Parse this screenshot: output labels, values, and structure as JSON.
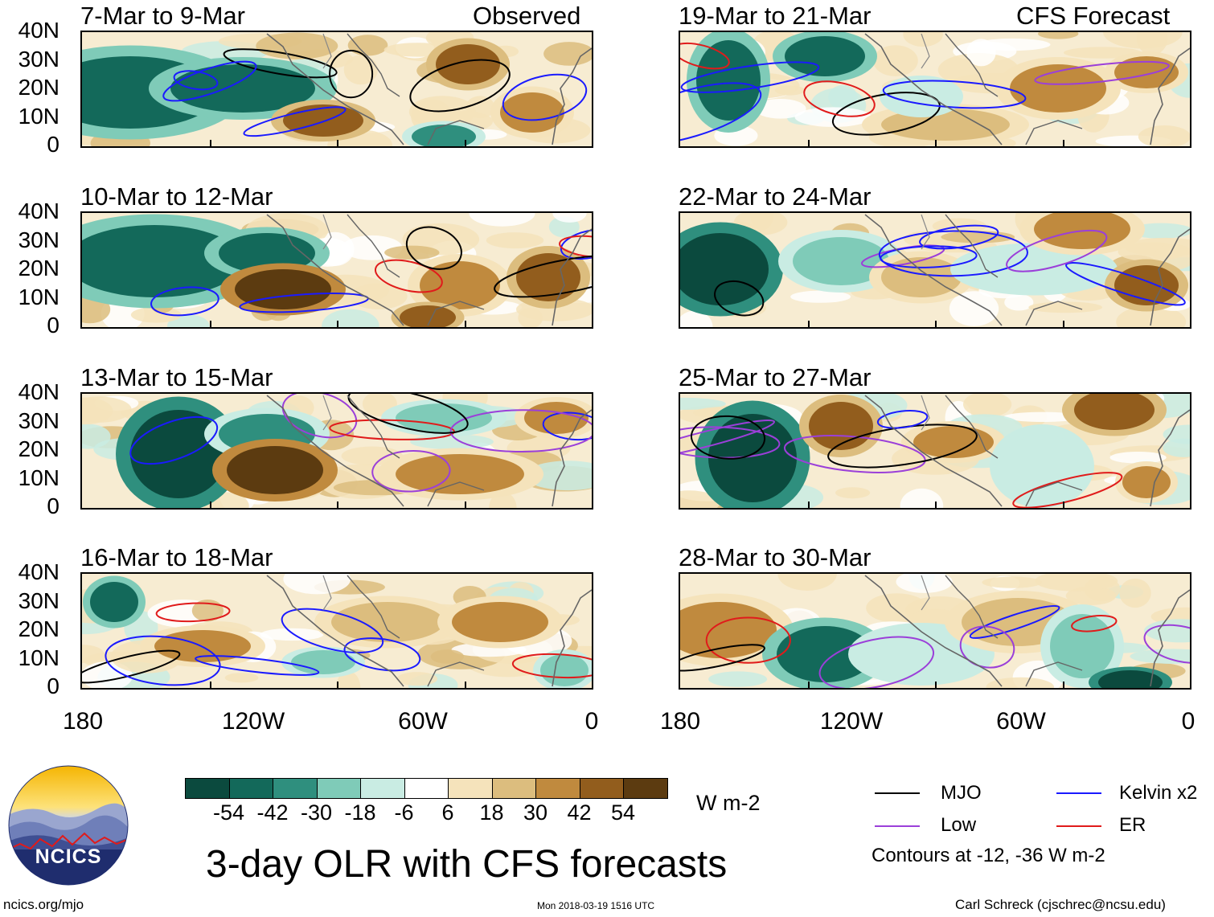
{
  "chart_data": {
    "type": "heatmap",
    "title": "3-day OLR with CFS forecasts",
    "units": "W m-2",
    "y_ticks": [
      "40N",
      "30N",
      "20N",
      "10N",
      "0"
    ],
    "x_ticks": [
      "180",
      "120W",
      "60W",
      "0"
    ],
    "column_headers": {
      "left": "Observed",
      "right": "CFS Forecast"
    },
    "panels": [
      {
        "column": "left",
        "label": "7-Mar to 9-Mar"
      },
      {
        "column": "left",
        "label": "10-Mar to 12-Mar"
      },
      {
        "column": "left",
        "label": "13-Mar to 15-Mar"
      },
      {
        "column": "left",
        "label": "16-Mar to 18-Mar"
      },
      {
        "column": "right",
        "label": "19-Mar to 21-Mar"
      },
      {
        "column": "right",
        "label": "22-Mar to 24-Mar"
      },
      {
        "column": "right",
        "label": "25-Mar to 27-Mar"
      },
      {
        "column": "right",
        "label": "28-Mar to 30-Mar"
      }
    ],
    "colorbar": {
      "labels": [
        "-54",
        "-42",
        "-30",
        "-18",
        "-6",
        "6",
        "18",
        "30",
        "42",
        "54"
      ],
      "colors": [
        "#0b4a3e",
        "#13695a",
        "#2f8f7e",
        "#7fcbb8",
        "#c9ece3",
        "#ffffff",
        "#f5e3bb",
        "#dcbd7e",
        "#c08a3e",
        "#925d1d",
        "#5c3b10"
      ],
      "units": "W m-2"
    },
    "legend": [
      {
        "label": "MJO",
        "color": "#000000"
      },
      {
        "label": "Kelvin x2",
        "color": "#1a1aff"
      },
      {
        "label": "Low",
        "color": "#9b3fd9"
      },
      {
        "label": "ER",
        "color": "#e01b1b"
      }
    ],
    "contour_note": "Contours at -12, -36 W m-2"
  },
  "footer": {
    "logo_text": "NCICS",
    "site": "ncics.org/mjo",
    "timestamp": "Mon 2018-03-19 1516 UTC",
    "credit": "Carl Schreck (cjschrec@ncsu.edu)"
  }
}
